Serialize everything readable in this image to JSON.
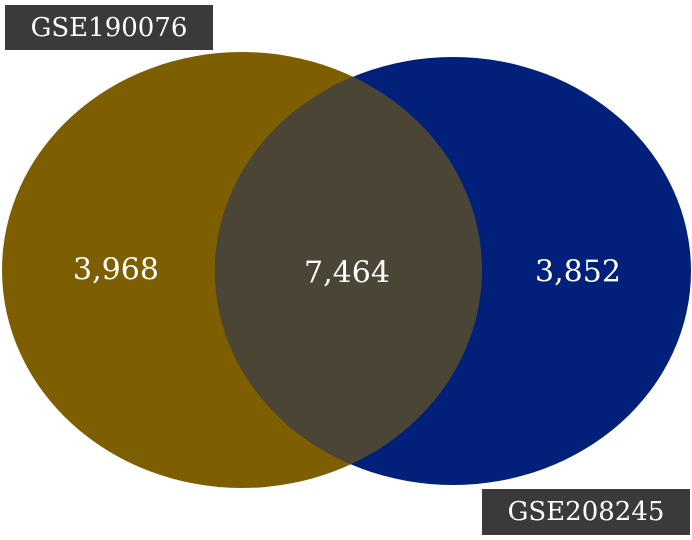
{
  "sets": [
    {
      "name": "GSE190076",
      "only_count": "3,968",
      "color": "#7d5e00"
    },
    {
      "name": "GSE208245",
      "only_count": "3,852",
      "color": "#00207a"
    }
  ],
  "intersection": {
    "count": "7,464",
    "color": "#4a4535"
  },
  "label_bg": "#3b393a"
}
